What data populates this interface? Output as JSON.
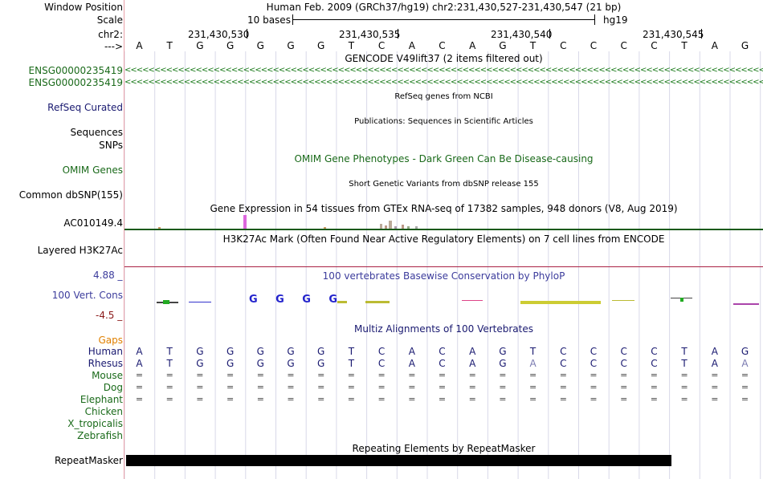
{
  "header": {
    "window_position_label": "Window Position",
    "scale_label": "Scale",
    "chr_label": "chr2:",
    "strand_label": "--->",
    "assembly_title": "Human Feb. 2009 (GRCh37/hg19)   chr2:231,430,527-231,430,547 (21 bp)",
    "scale_text": "10 bases",
    "scale_assembly": "hg19",
    "coords": [
      "231,430,530",
      "231,430,535",
      "231,430,540",
      "231,430,545"
    ]
  },
  "bases": [
    "A",
    "T",
    "G",
    "G",
    "G",
    "G",
    "G",
    "T",
    "C",
    "A",
    "C",
    "A",
    "G",
    "T",
    "C",
    "C",
    "C",
    "C",
    "T",
    "A",
    "G"
  ],
  "tracks": {
    "gencode": {
      "title": "GENCODE V49lift37 (2 items filtered out)",
      "items": [
        "ENSG00000235419",
        "ENSG00000235419"
      ],
      "chevrons": "<<<<<<<<<<<<<<<<<<<<<<<<<<<<<<<<<<<<<<<<<<<<<<<<<<<<<<<<<<<<<<<<<<<<<<<<<<<<<<<<<<<<<<<<<<<<<<<<<<<<<<<<<<<<<<<<<<<<<<<<<<<<<<<<<<<<<<<<<<<<<<"
    },
    "refseq": {
      "label": "RefSeq Curated",
      "title": "RefSeq genes from NCBI"
    },
    "pubs": {
      "label": "Sequences",
      "title": "Publications: Sequences in Scientific Articles"
    },
    "snps": {
      "label": "SNPs"
    },
    "omim": {
      "label": "OMIM Genes",
      "title": "OMIM Gene Phenotypes - Dark Green Can Be Disease-causing"
    },
    "dbsnp": {
      "label": "Common dbSNP(155)",
      "title": "Short Genetic Variants from dbSNP release 155"
    },
    "gtex": {
      "label": "AC010149.4",
      "title": "Gene Expression in 54 tissues from GTEx RNA-seq of 17382 samples, 948 donors (V8, Aug 2019)"
    },
    "h3k27ac": {
      "label": "Layered H3K27Ac",
      "title": "H3K27Ac Mark (Often Found Near Active Regulatory Elements) on 7 cell lines from ENCODE"
    },
    "phylop": {
      "label": "100 Vert. Cons",
      "title": "100 vertebrates Basewise Conservation by PhyloP",
      "max": "4.88 _",
      "min": "-4.5 _"
    },
    "multiz": {
      "title": "Multiz Alignments of 100 Vertebrates",
      "gaps_label": "Gaps",
      "species": [
        {
          "name": "Human",
          "row": [
            "A",
            "T",
            "G",
            "G",
            "G",
            "G",
            "G",
            "T",
            "C",
            "A",
            "C",
            "A",
            "G",
            "T",
            "C",
            "C",
            "C",
            "C",
            "T",
            "A",
            "G"
          ]
        },
        {
          "name": "Rhesus",
          "row": [
            "A",
            "T",
            "G",
            "G",
            "G",
            "G",
            "G",
            "T",
            "C",
            "A",
            "C",
            "A",
            "G",
            "A",
            "C",
            "C",
            "C",
            "C",
            "T",
            "A",
            "A"
          ]
        },
        {
          "name": "Mouse",
          "row": [
            "=",
            "=",
            "=",
            "=",
            "=",
            "=",
            "=",
            "=",
            "=",
            "=",
            "=",
            "=",
            "=",
            "=",
            "=",
            "=",
            "=",
            "=",
            "=",
            "=",
            "="
          ]
        },
        {
          "name": "Dog",
          "row": [
            "=",
            "=",
            "=",
            "=",
            "=",
            "=",
            "=",
            "=",
            "=",
            "=",
            "=",
            "=",
            "=",
            "=",
            "=",
            "=",
            "=",
            "=",
            "=",
            "=",
            "="
          ]
        },
        {
          "name": "Elephant",
          "row": [
            "=",
            "=",
            "=",
            "=",
            "=",
            "=",
            "=",
            "=",
            "=",
            "=",
            "=",
            "=",
            "=",
            "=",
            "=",
            "=",
            "=",
            "=",
            "=",
            "=",
            "="
          ]
        },
        {
          "name": "Chicken",
          "row": []
        },
        {
          "name": "X_tropicalis",
          "row": []
        },
        {
          "name": "Zebrafish",
          "row": []
        }
      ]
    },
    "repeatmasker": {
      "label": "RepeatMasker",
      "title": "Repeating Elements by RepeatMasker"
    }
  },
  "colors": {
    "navy": "#191970",
    "green": "#1a6a1a",
    "orange": "#e08000",
    "maroon": "#8b1a1a",
    "phylop_blue": "#3c3c9c"
  }
}
